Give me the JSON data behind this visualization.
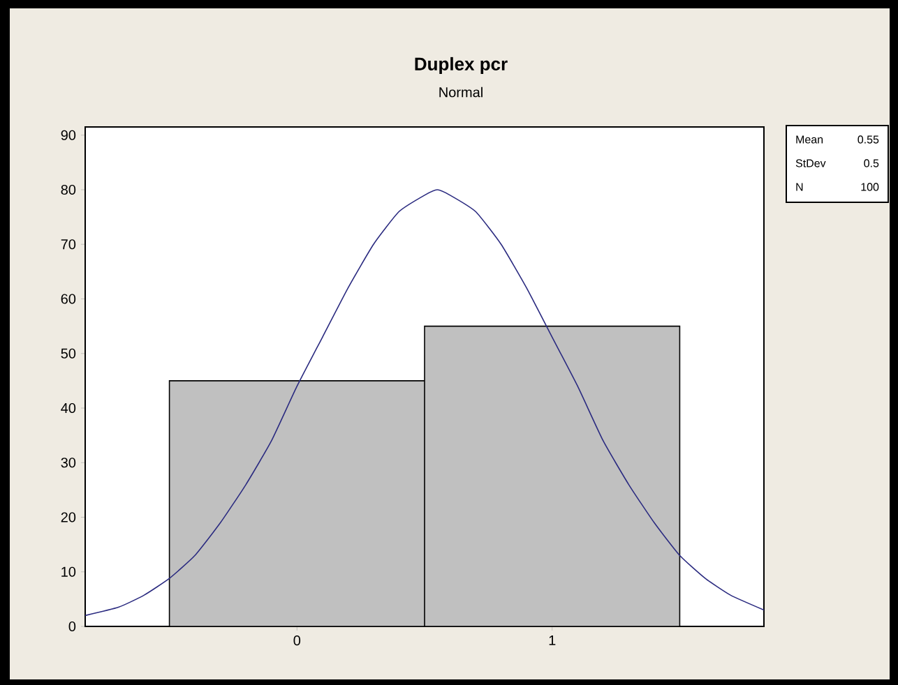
{
  "chart_data": {
    "type": "histogram",
    "title": "Duplex pcr",
    "subtitle": "Normal",
    "annotations": [
      "Mean",
      "0.55",
      "StDev",
      "0.5",
      "N",
      "100"
    ],
    "xlim": [
      -0.83,
      1.83
    ],
    "xticks": [
      0,
      1
    ],
    "ylim": [
      0,
      91.5
    ],
    "yticks": [
      0,
      10,
      20,
      30,
      40,
      50,
      60,
      70,
      80,
      90
    ],
    "grid": false,
    "series": [
      {
        "type": "histogram",
        "color": "#c0c0c0",
        "bins": [
          -0.5,
          0.5,
          1.5
        ],
        "values": [
          45,
          55
        ]
      },
      {
        "type": "line",
        "color": "#2b2b80",
        "x": [
          -0.83,
          -0.7,
          -0.6,
          -0.5,
          -0.4,
          -0.3,
          -0.2,
          -0.1,
          0,
          0.1,
          0.2,
          0.3,
          0.4,
          0.5,
          0.55,
          0.6,
          0.7,
          0.8,
          0.9,
          1.0,
          1.1,
          1.2,
          1.3,
          1.4,
          1.5,
          1.6,
          1.7,
          1.83
        ],
        "values": [
          2,
          3.5,
          5.7,
          8.8,
          13,
          19,
          26,
          34,
          44,
          53,
          62,
          70,
          76,
          79,
          80,
          79,
          76,
          70,
          62,
          53,
          44,
          34,
          26,
          19,
          13,
          8.8,
          5.7,
          3
        ]
      }
    ]
  }
}
